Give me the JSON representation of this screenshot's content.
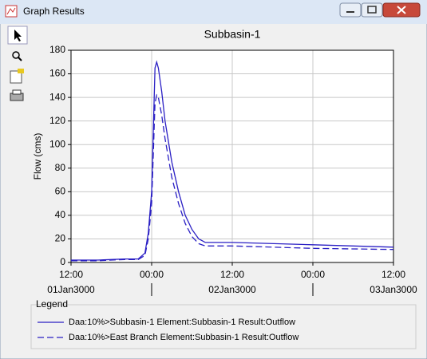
{
  "window": {
    "title": "Graph Results"
  },
  "chart_data": {
    "type": "line",
    "title": "Subbasin-1",
    "y_label": "Flow (cms)",
    "x": [
      "3000-01-01T12:00",
      "3000-01-01T14:00",
      "3000-01-01T16:00",
      "3000-01-01T18:00",
      "3000-01-01T20:00",
      "3000-01-01T22:00",
      "3000-01-01T23:00",
      "3000-01-01T23:30",
      "3000-01-02T00:00",
      "3000-01-02T00:30",
      "3000-01-02T00:45",
      "3000-01-02T01:00",
      "3000-01-02T01:30",
      "3000-01-02T02:00",
      "3000-01-02T03:00",
      "3000-01-02T04:00",
      "3000-01-02T05:00",
      "3000-01-02T06:00",
      "3000-01-02T07:00",
      "3000-01-02T08:00",
      "3000-01-02T12:00",
      "3000-01-03T00:00",
      "3000-01-03T12:00"
    ],
    "series": [
      {
        "name": "Daa:10%>Subbasin-1 Element:Subbasin-1 Result:Outflow",
        "color": "#2a1fc4",
        "dash": false,
        "values": [
          2,
          2,
          2,
          2.5,
          3,
          3,
          8,
          25,
          60,
          165,
          170,
          165,
          145,
          120,
          85,
          60,
          40,
          28,
          20,
          17,
          17,
          15,
          13
        ]
      },
      {
        "name": "Daa:10%>East Branch Element:Subbasin-1 Result:Outflow",
        "color": "#2a1fc4",
        "dash": true,
        "values": [
          1.5,
          1.5,
          1.5,
          2,
          2.5,
          2.5,
          6,
          20,
          50,
          135,
          142,
          140,
          125,
          105,
          72,
          50,
          33,
          22,
          16,
          14,
          14,
          12,
          11
        ]
      }
    ],
    "xlim": [
      "3000-01-01T12:00",
      "3000-01-03T12:00"
    ],
    "xticks": [
      {
        "value": "3000-01-01T12:00",
        "label": "12:00"
      },
      {
        "value": "3000-01-02T00:00",
        "label": "00:00"
      },
      {
        "value": "3000-01-02T12:00",
        "label": "12:00"
      },
      {
        "value": "3000-01-03T00:00",
        "label": "00:00"
      },
      {
        "value": "3000-01-03T12:00",
        "label": "12:00"
      }
    ],
    "date_labels": [
      {
        "value": "3000-01-01T12:00",
        "label": "01Jan3000"
      },
      {
        "value": "3000-01-02T12:00",
        "label": "02Jan3000"
      },
      {
        "value": "3000-01-03T12:00",
        "label": "03Jan3000"
      }
    ],
    "ylim": [
      0,
      180
    ],
    "yticks": [
      0,
      20,
      40,
      60,
      80,
      100,
      120,
      140,
      160,
      180
    ],
    "grid": true,
    "legend_title": "Legend"
  }
}
